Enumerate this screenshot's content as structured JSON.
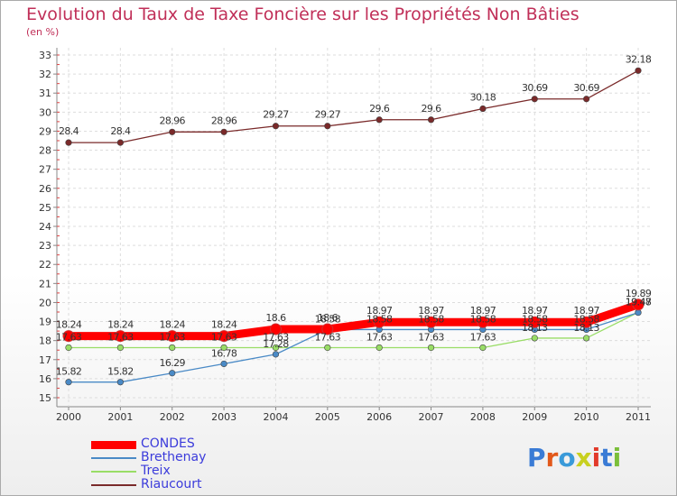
{
  "title": "Evolution du Taux de Taxe Foncière sur les Propriétés Non Bâties",
  "unit_label": "(en %)",
  "logo_text": "Proxiti",
  "chart_data": {
    "type": "line",
    "title": "Evolution du Taux de Taxe Foncière sur les Propriétés Non Bâties",
    "ylabel": "(en %)",
    "xlabel": "",
    "x": [
      "2000",
      "2001",
      "2002",
      "2003",
      "2004",
      "2005",
      "2006",
      "2007",
      "2008",
      "2009",
      "2010",
      "2011"
    ],
    "ylim": [
      15,
      33
    ],
    "yticks": [
      15,
      16,
      17,
      18,
      19,
      20,
      21,
      22,
      23,
      24,
      25,
      26,
      27,
      28,
      29,
      30,
      31,
      32,
      33
    ],
    "grid": true,
    "legend_position": "bottom-left",
    "series": [
      {
        "name": "CONDES",
        "color": "#ff0000",
        "values": [
          18.24,
          18.24,
          18.24,
          18.24,
          18.6,
          18.6,
          18.97,
          18.97,
          18.97,
          18.97,
          18.97,
          19.89
        ],
        "labels": [
          "18.24",
          "18.24",
          "18.24",
          "18.24",
          "18.6",
          "18.6",
          "18.97",
          "18.97",
          "18.97",
          "18.97",
          "18.97",
          "19.89"
        ]
      },
      {
        "name": "Brethenay",
        "color": "#4a8ac6",
        "values": [
          15.82,
          15.82,
          16.29,
          16.78,
          17.28,
          18.58,
          18.58,
          18.58,
          18.58,
          18.58,
          18.58,
          19.47
        ],
        "labels": [
          "15.82",
          "15.82",
          "16.29",
          "16.78",
          "17.28",
          "18.58",
          "18.58",
          "18.58",
          "18.58",
          "18.58",
          "18.58",
          "19.47"
        ]
      },
      {
        "name": "Treix",
        "color": "#99dd66",
        "values": [
          17.63,
          17.63,
          17.63,
          17.63,
          17.63,
          17.63,
          17.63,
          17.63,
          17.63,
          18.13,
          18.13,
          19.48
        ],
        "labels": [
          "17.63",
          "17.63",
          "17.63",
          "17.63",
          "17.63",
          "17.63",
          "17.63",
          "17.63",
          "17.63",
          "18.13",
          "18.13",
          "19.48"
        ]
      },
      {
        "name": "Riaucourt",
        "color": "#7a2a2a",
        "values": [
          28.4,
          28.4,
          28.96,
          28.96,
          29.27,
          29.27,
          29.6,
          29.6,
          30.18,
          30.69,
          30.69,
          32.18
        ],
        "labels": [
          "28.4",
          "28.4",
          "28.96",
          "28.96",
          "29.27",
          "29.27",
          "29.6",
          "29.6",
          "30.18",
          "30.69",
          "30.69",
          "32.18"
        ]
      }
    ]
  }
}
